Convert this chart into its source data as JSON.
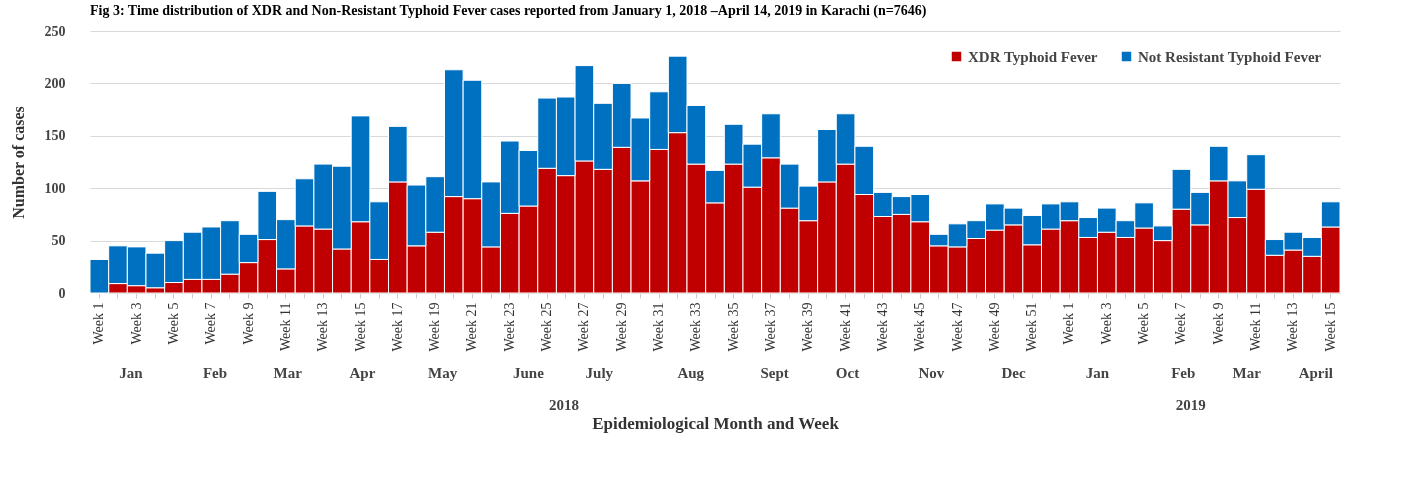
{
  "chart_data": {
    "type": "bar",
    "stacked": true,
    "title": "Fig 3: Time distribution of XDR and Non-Resistant Typhoid Fever cases reported from January 1, 2018 –April 14, 2019 in Karachi (n=7646)",
    "xlabel": "Epidemiological Month and Week",
    "ylabel": "Number of cases",
    "categories": [
      "Week 1",
      null,
      "Week 3",
      null,
      "Week 5",
      null,
      "Week 7",
      null,
      "Week 9",
      null,
      "Week 11",
      null,
      "Week 13",
      null,
      "Week 15",
      null,
      "Week 17",
      null,
      "Week 19",
      null,
      "Week 21",
      null,
      "Week 23",
      null,
      "Week 25",
      null,
      "Week 27",
      null,
      "Week 29",
      null,
      "Week 31",
      null,
      "Week 33",
      null,
      "Week 35",
      null,
      "Week 37",
      null,
      "Week 39",
      null,
      "Week 41",
      null,
      "Week 43",
      null,
      "Week 45",
      null,
      "Week 47",
      null,
      "Week 49",
      null,
      "Week 51",
      null,
      "Week 1",
      null,
      "Week 3",
      null,
      "Week 5",
      null,
      "Week 7",
      null,
      "Week 9",
      null,
      "Week 11",
      null,
      "Week 13",
      null,
      "Week 15"
    ],
    "series": [
      {
        "name": "XDR Typhoid Fever",
        "color": "#c00000",
        "values": [
          0,
          9,
          7,
          5,
          10,
          13,
          13,
          18,
          29,
          51,
          23,
          64,
          61,
          42,
          68,
          32,
          106,
          45,
          58,
          92,
          90,
          44,
          76,
          83,
          119,
          112,
          126,
          118,
          139,
          107,
          137,
          153,
          123,
          86,
          123,
          101,
          129,
          81,
          69,
          106,
          123,
          94,
          73,
          75,
          68,
          45,
          44,
          52,
          60,
          65,
          46,
          61,
          69,
          53,
          58,
          53,
          62,
          50,
          80,
          65,
          107,
          72,
          99,
          36,
          41,
          35,
          63
        ]
      },
      {
        "name": "Not Resistant Typhoid Fever",
        "color": "#0070c0",
        "values": [
          32,
          36,
          37,
          33,
          40,
          45,
          50,
          51,
          27,
          46,
          47,
          45,
          62,
          79,
          101,
          55,
          53,
          58,
          53,
          121,
          113,
          62,
          69,
          53,
          67,
          75,
          91,
          63,
          61,
          60,
          55,
          73,
          56,
          31,
          38,
          41,
          42,
          42,
          33,
          50,
          48,
          46,
          23,
          17,
          26,
          11,
          22,
          17,
          25,
          16,
          28,
          24,
          18,
          19,
          23,
          16,
          24,
          14,
          38,
          31,
          33,
          35,
          33,
          15,
          17,
          18,
          24
        ]
      }
    ],
    "ylim": [
      0,
      250
    ],
    "yticks": [
      0,
      50,
      100,
      150,
      200,
      250
    ],
    "grid": "y",
    "legend": "top right",
    "annotations": [
      "Jan",
      "Feb",
      "Mar",
      "Apr",
      "May",
      "June",
      "July",
      "Aug",
      "Sept",
      "Oct",
      "Nov",
      "Dec",
      "Jan",
      "Feb",
      "Mar",
      "April",
      "2018",
      "2019"
    ]
  }
}
